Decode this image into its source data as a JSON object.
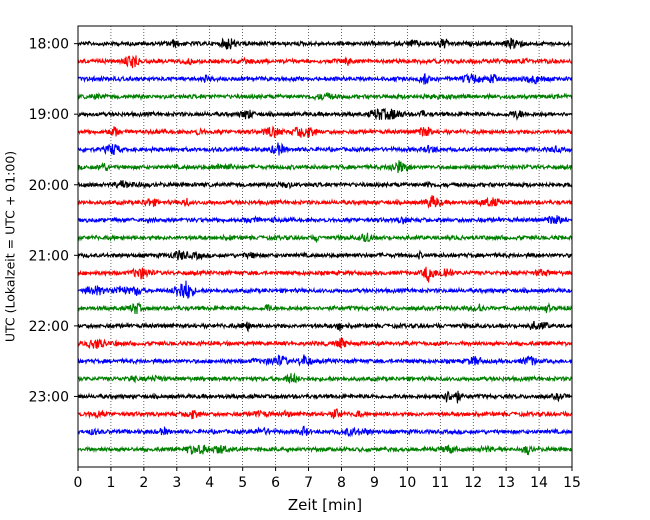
{
  "chart_data": {
    "type": "line",
    "title": "",
    "xlabel": "Zeit  [min]",
    "ylabel": "UTC (Lokalzeit = UTC + 01:00)",
    "xlim": [
      0,
      15
    ],
    "x_ticks": [
      0,
      1,
      2,
      3,
      4,
      5,
      6,
      7,
      8,
      9,
      10,
      11,
      12,
      13,
      14,
      15
    ],
    "y_ticks": [
      "18:00",
      "19:00",
      "20:00",
      "21:00",
      "22:00",
      "23:00"
    ],
    "ylim": [
      "17:45",
      "24:00"
    ],
    "trace_interval_min": 15,
    "trace_colors": [
      "#000000",
      "#ff0000",
      "#0000ff",
      "#008000"
    ],
    "traces": [
      "18:00",
      "18:15",
      "18:30",
      "18:45",
      "19:00",
      "19:15",
      "19:30",
      "19:45",
      "20:00",
      "20:15",
      "20:30",
      "20:45",
      "21:00",
      "21:15",
      "21:30",
      "21:45",
      "22:00",
      "22:15",
      "22:30",
      "22:45",
      "23:00",
      "23:15",
      "23:30",
      "23:45"
    ],
    "vertical_grid": true,
    "grid_style": "dotted"
  }
}
